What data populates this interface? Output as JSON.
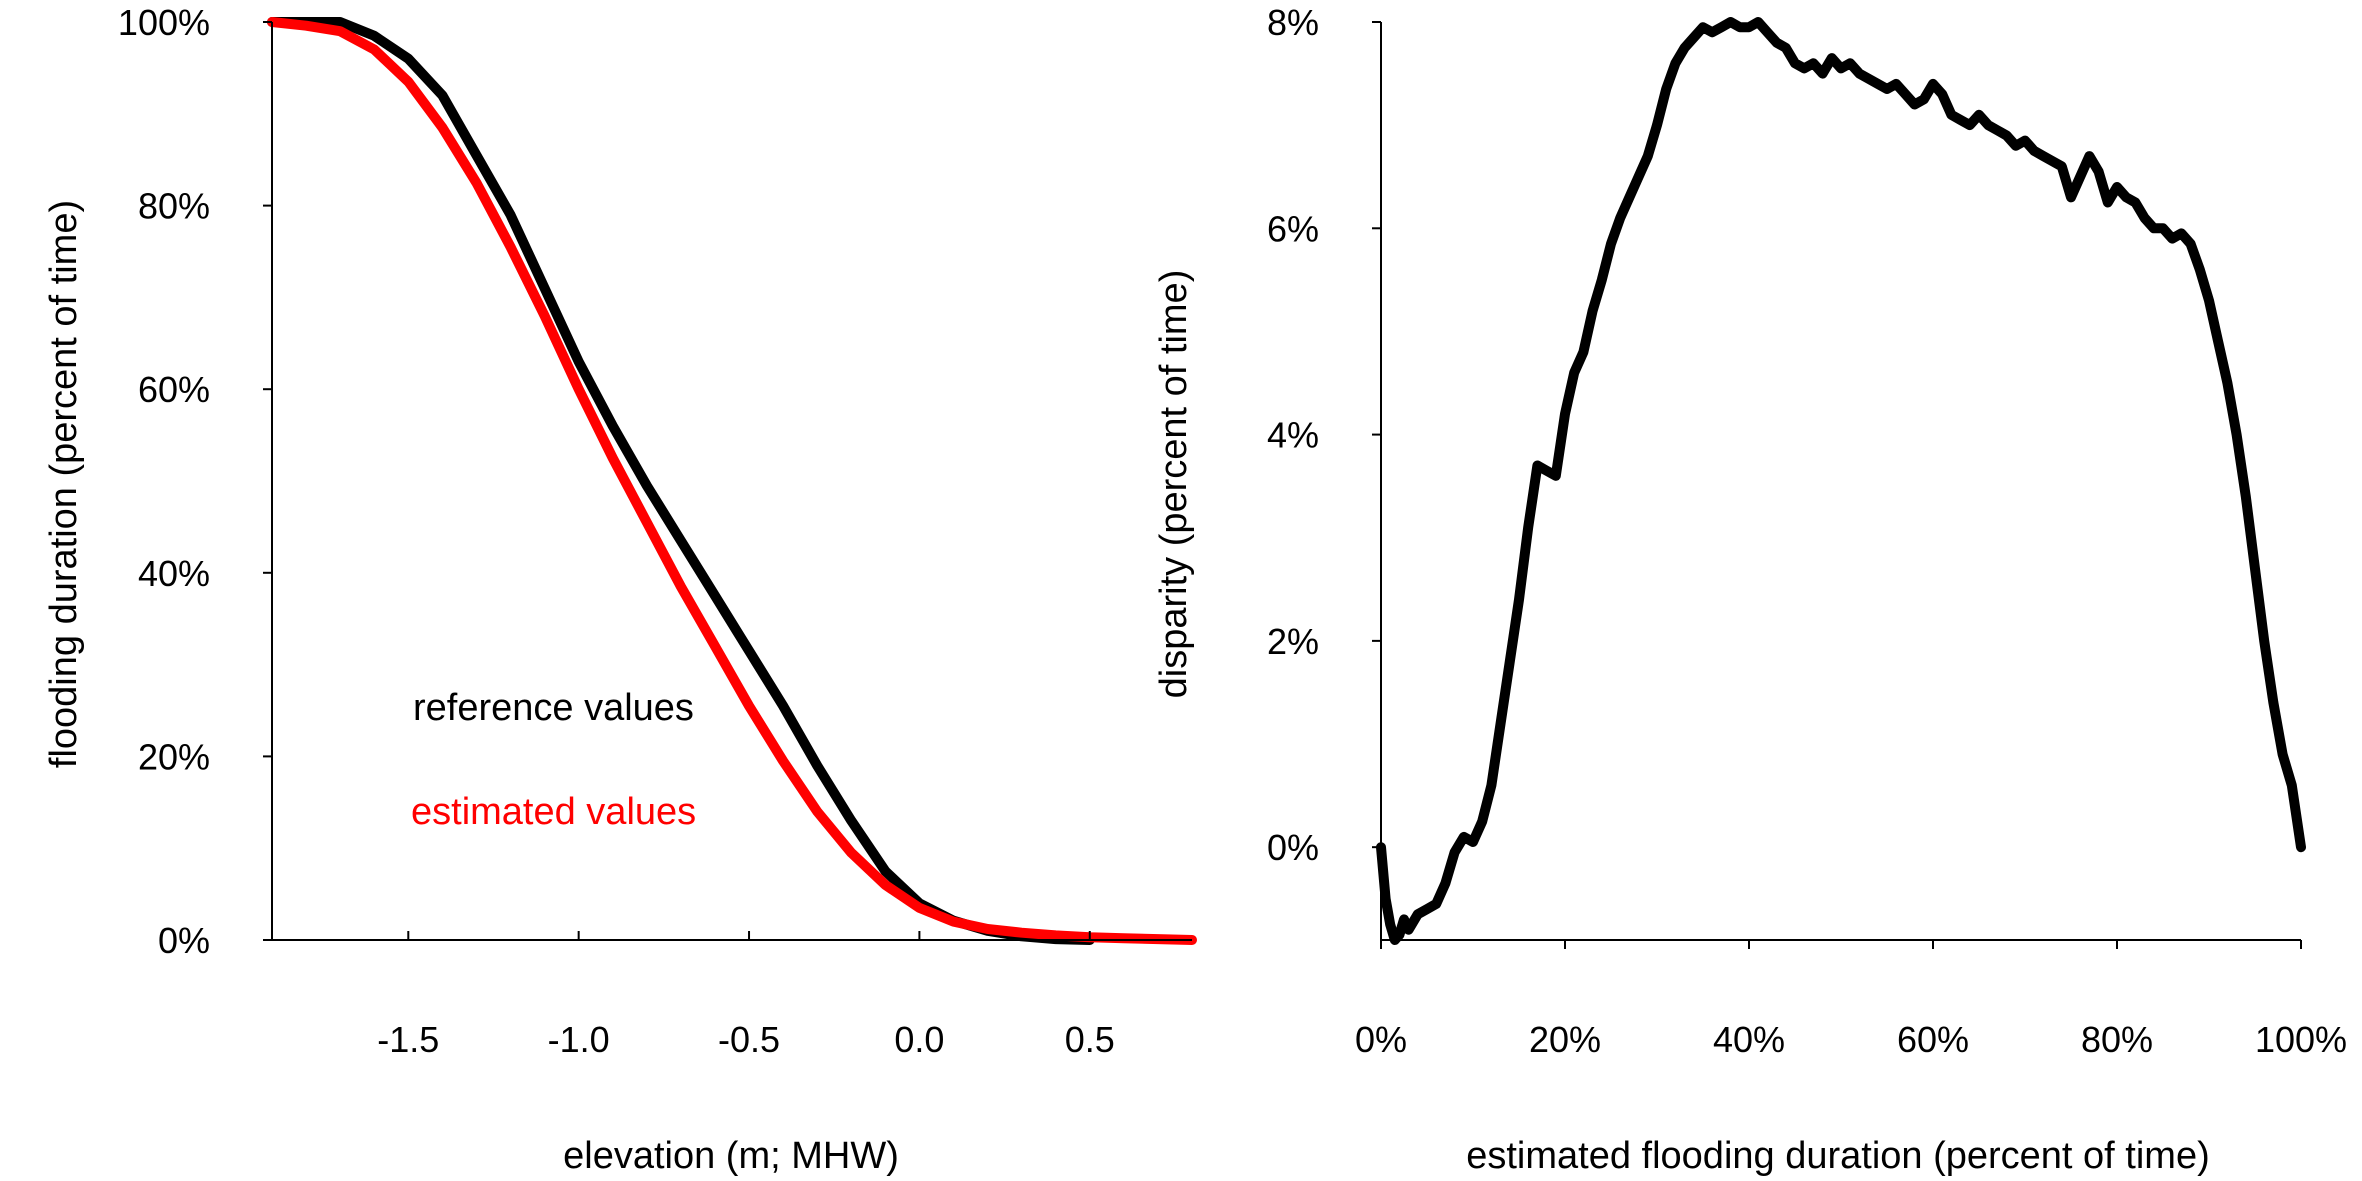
{
  "chart_data": [
    {
      "type": "line",
      "xlabel": "elevation (m; MHW)",
      "ylabel": "flooding duration (percent of time)",
      "xlim": [
        -1.9,
        0.8
      ],
      "ylim": [
        0,
        100
      ],
      "x_ticks": [
        "-1.5",
        "-1.0",
        "-0.5",
        "0.0",
        "0.5"
      ],
      "x_tick_values": [
        -1.5,
        -1.0,
        -0.5,
        0.0,
        0.5
      ],
      "y_ticks": [
        "0%",
        "20%",
        "40%",
        "60%",
        "80%",
        "100%"
      ],
      "y_tick_values": [
        0,
        20,
        40,
        60,
        80,
        100
      ],
      "grid": false,
      "legend_position": "lower-left",
      "series": [
        {
          "name": "reference values",
          "color": "#000000",
          "x": [
            -1.9,
            -1.8,
            -1.7,
            -1.6,
            -1.5,
            -1.4,
            -1.3,
            -1.2,
            -1.1,
            -1.0,
            -0.9,
            -0.8,
            -0.7,
            -0.6,
            -0.5,
            -0.4,
            -0.3,
            -0.2,
            -0.1,
            0.0,
            0.1,
            0.2,
            0.3,
            0.4,
            0.5
          ],
          "y": [
            100,
            100,
            100,
            98.5,
            96,
            92,
            85.5,
            79,
            71,
            63,
            56,
            49.5,
            43.5,
            37.5,
            31.5,
            25.5,
            19,
            13,
            7.5,
            4,
            2.1,
            1.0,
            0.4,
            0.1,
            0.0
          ]
        },
        {
          "name": "estimated values",
          "color": "#ff0000",
          "x": [
            -1.9,
            -1.8,
            -1.7,
            -1.6,
            -1.5,
            -1.4,
            -1.3,
            -1.2,
            -1.1,
            -1.0,
            -0.9,
            -0.8,
            -0.7,
            -0.6,
            -0.5,
            -0.4,
            -0.3,
            -0.2,
            -0.1,
            0.0,
            0.1,
            0.2,
            0.3,
            0.4,
            0.5,
            0.6,
            0.7,
            0.8
          ],
          "y": [
            100,
            99.6,
            99,
            97,
            93.5,
            88.5,
            82.5,
            75.5,
            68,
            60,
            52.5,
            45.5,
            38.5,
            32,
            25.5,
            19.5,
            14,
            9.5,
            6,
            3.5,
            2.0,
            1.2,
            0.8,
            0.5,
            0.3,
            0.2,
            0.1,
            0.0
          ]
        }
      ]
    },
    {
      "type": "line",
      "xlabel": "estimated flooding duration (percent of time)",
      "ylabel": "disparity (percent of time)",
      "xlim": [
        0,
        100
      ],
      "ylim": [
        -0.9,
        8
      ],
      "x_ticks": [
        "0%",
        "20%",
        "40%",
        "60%",
        "80%",
        "100%"
      ],
      "x_tick_values": [
        0,
        20,
        40,
        60,
        80,
        100
      ],
      "y_ticks": [
        "0%",
        "2%",
        "4%",
        "6%",
        "8%"
      ],
      "y_tick_values": [
        0,
        2,
        4,
        6,
        8
      ],
      "grid": false,
      "series": [
        {
          "color": "#000000",
          "x": [
            0,
            0.5,
            1,
            1.5,
            2,
            2.5,
            3,
            4,
            5,
            6,
            7,
            8,
            9,
            10,
            11,
            12,
            13,
            14,
            15,
            16,
            17,
            18,
            19,
            20,
            21,
            22,
            23,
            24,
            25,
            26,
            27,
            28,
            29,
            30,
            31,
            32,
            33,
            34,
            35,
            36,
            37,
            38,
            39,
            40,
            41,
            42,
            43,
            44,
            45,
            46,
            47,
            48,
            49,
            50,
            51,
            52,
            53,
            54,
            55,
            56,
            57,
            58,
            59,
            60,
            61,
            62,
            63,
            64,
            65,
            66,
            67,
            68,
            69,
            70,
            71,
            72,
            73,
            74,
            75,
            76,
            77,
            78,
            79,
            80,
            81,
            82,
            83,
            84,
            85,
            86,
            87,
            88,
            89,
            90,
            91,
            92,
            93,
            94,
            95,
            96,
            97,
            98,
            99,
            100
          ],
          "y": [
            0.0,
            -0.5,
            -0.75,
            -0.9,
            -0.85,
            -0.7,
            -0.8,
            -0.65,
            -0.6,
            -0.55,
            -0.35,
            -0.05,
            0.1,
            0.05,
            0.25,
            0.6,
            1.2,
            1.8,
            2.4,
            3.1,
            3.7,
            3.65,
            3.6,
            4.2,
            4.6,
            4.8,
            5.2,
            5.5,
            5.85,
            6.1,
            6.3,
            6.5,
            6.7,
            7.0,
            7.35,
            7.6,
            7.75,
            7.85,
            7.95,
            7.9,
            7.95,
            8.0,
            7.95,
            7.95,
            8.0,
            7.9,
            7.8,
            7.75,
            7.6,
            7.55,
            7.6,
            7.5,
            7.65,
            7.55,
            7.6,
            7.5,
            7.45,
            7.4,
            7.35,
            7.4,
            7.3,
            7.2,
            7.25,
            7.4,
            7.3,
            7.1,
            7.05,
            7.0,
            7.1,
            7.0,
            6.95,
            6.9,
            6.8,
            6.85,
            6.75,
            6.7,
            6.65,
            6.6,
            6.3,
            6.5,
            6.7,
            6.55,
            6.25,
            6.4,
            6.3,
            6.25,
            6.1,
            6.0,
            6.0,
            5.9,
            5.95,
            5.85,
            5.6,
            5.3,
            4.9,
            4.5,
            4.0,
            3.4,
            2.7,
            2.0,
            1.4,
            0.9,
            0.6,
            0.0
          ]
        }
      ]
    }
  ],
  "legend": {
    "reference_label": "reference values",
    "estimated_label": "estimated values",
    "reference_color": "#000000",
    "estimated_color": "#ff0000"
  },
  "panel1": {
    "xlabel": "elevation (m; MHW)",
    "ylabel": "flooding duration (percent of time)"
  },
  "panel2": {
    "xlabel": "estimated flooding duration (percent of time)",
    "ylabel": "disparity (percent of time)"
  }
}
